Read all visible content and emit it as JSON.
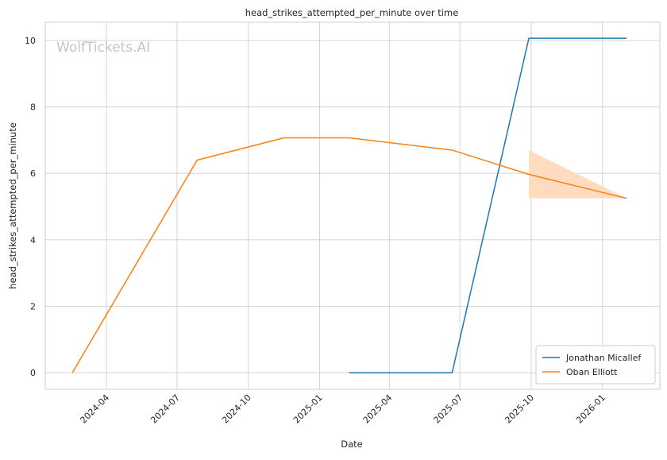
{
  "chart_data": {
    "type": "line",
    "title": "head_strikes_attempted_per_minute over time",
    "xlabel": "Date",
    "ylabel": "head_strikes_attempted_per_minute",
    "watermark": "WolfTickets.AI",
    "xlim": [
      "2024-01-13",
      "2026-03-16"
    ],
    "ylim": [
      -0.5,
      10.55
    ],
    "x_ticks": [
      "2024-04-01",
      "2024-07-01",
      "2024-10-01",
      "2025-01-01",
      "2025-04-01",
      "2025-07-01",
      "2025-10-01",
      "2026-01-01"
    ],
    "x_tick_labels": [
      "2024-04",
      "2024-07",
      "2024-10",
      "2025-01",
      "2025-04",
      "2025-07",
      "2025-10",
      "2026-01"
    ],
    "y_ticks": [
      0,
      2,
      4,
      6,
      8,
      10
    ],
    "y_tick_labels": [
      "0",
      "2",
      "4",
      "6",
      "8",
      "10"
    ],
    "grid": true,
    "legend_position": "bottom-right",
    "series": [
      {
        "name": "Jonathan Micallef",
        "color": "#1f77b4",
        "x": [
          "2025-02-08",
          "2025-06-21",
          "2025-09-28",
          "2026-02-01"
        ],
        "y": [
          0.0,
          0.0,
          10.07,
          10.07
        ]
      },
      {
        "name": "Oban Elliott",
        "color": "#ff7f0e",
        "x": [
          "2024-02-17",
          "2024-07-27",
          "2024-11-16",
          "2025-02-08",
          "2025-06-21",
          "2025-09-28",
          "2026-02-01"
        ],
        "y": [
          0.0,
          6.4,
          7.07,
          7.07,
          6.7,
          5.97,
          5.25
        ],
        "band": {
          "x": [
            "2025-09-28",
            "2026-02-01"
          ],
          "lower": [
            5.25,
            5.25
          ],
          "upper": [
            6.7,
            5.25
          ],
          "color": "#ffdcbf"
        }
      }
    ]
  }
}
